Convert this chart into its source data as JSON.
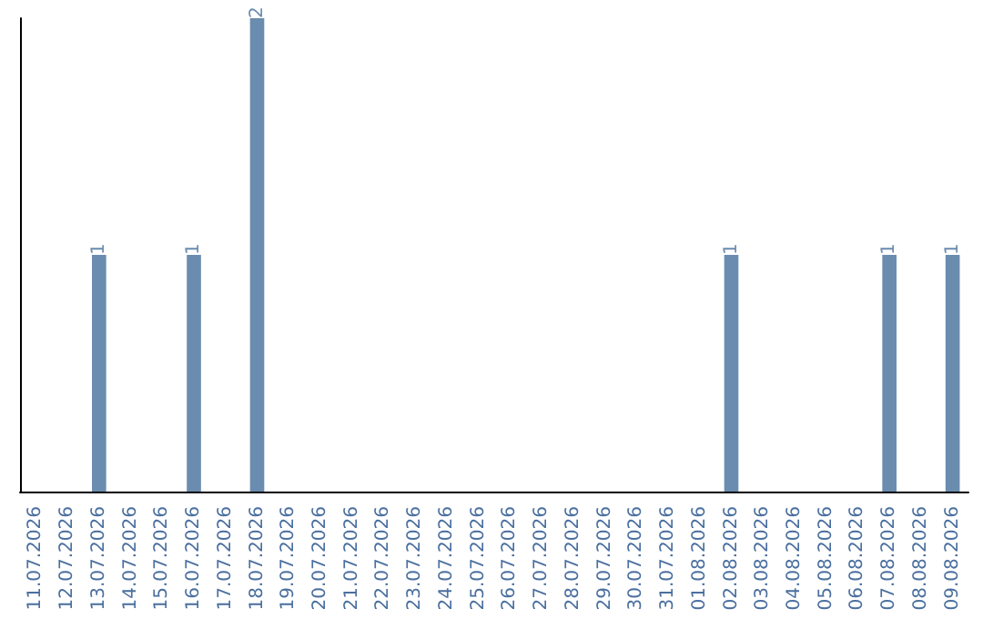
{
  "chart_data": {
    "type": "bar",
    "categories": [
      "11.07.2026",
      "12.07.2026",
      "13.07.2026",
      "14.07.2026",
      "15.07.2026",
      "16.07.2026",
      "17.07.2026",
      "18.07.2026",
      "19.07.2026",
      "20.07.2026",
      "21.07.2026",
      "22.07.2026",
      "23.07.2026",
      "24.07.2026",
      "25.07.2026",
      "26.07.2026",
      "27.07.2026",
      "28.07.2026",
      "29.07.2026",
      "30.07.2026",
      "31.07.2026",
      "01.08.2026",
      "02.08.2026",
      "03.08.2026",
      "04.08.2026",
      "05.08.2026",
      "06.08.2026",
      "07.08.2026",
      "08.08.2026",
      "09.08.2026"
    ],
    "values": [
      0,
      0,
      1,
      0,
      0,
      1,
      0,
      2,
      0,
      0,
      0,
      0,
      0,
      0,
      0,
      0,
      0,
      0,
      0,
      0,
      0,
      0,
      1,
      0,
      0,
      0,
      0,
      1,
      0,
      1
    ],
    "value_labels": [
      null,
      null,
      "1",
      null,
      null,
      "1",
      null,
      "2",
      null,
      null,
      null,
      null,
      null,
      null,
      null,
      null,
      null,
      null,
      null,
      null,
      null,
      null,
      "1",
      null,
      null,
      null,
      null,
      "1",
      null,
      "1"
    ],
    "color": "#6a8caf",
    "grid": false,
    "tick_labels": "x"
  }
}
